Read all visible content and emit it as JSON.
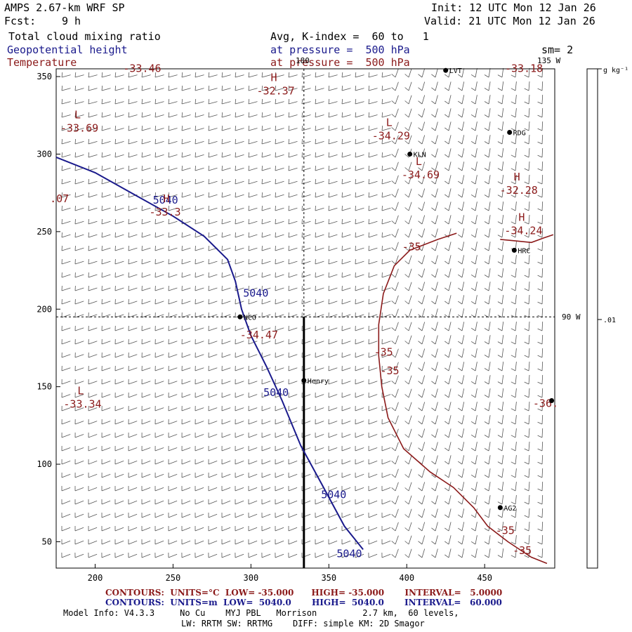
{
  "header": {
    "model": "AMPS 2.67-km WRF SP",
    "fcst_label": "Fcst:",
    "fcst_value": "9 h",
    "init": "Init: 12 UTC Mon 12 Jan 26",
    "valid": "Valid: 21 UTC Mon 12 Jan 26",
    "field1": "Total cloud mixing ratio",
    "field2": "Geopotential height",
    "field3": "Temperature",
    "avg": "Avg, K-index =  60 to   1",
    "pressure1": "at pressure =  500 hPa",
    "pressure2": "at pressure =  500 hPa",
    "sm": "sm= 2"
  },
  "colorbar": {
    "unit": "g kg⁻¹",
    "tick": ".01",
    "color": "#ffffff"
  },
  "map_labels": {
    "lon_top_180": "180",
    "lon_top_135w": "135 W",
    "lon_right_90w": "90 W"
  },
  "chart_data": {
    "type": "contour-map",
    "xlim": [
      175,
      495
    ],
    "ylim": [
      33,
      355
    ],
    "xticks": [
      "200",
      "250",
      "300",
      "350",
      "400",
      "450"
    ],
    "yticks": [
      "50",
      "100",
      "150",
      "200",
      "250",
      "300",
      "350"
    ],
    "reference_lines": {
      "lon_180_x": 334,
      "lon_90w_y": 195
    },
    "cross_section_x": 334,
    "stations": [
      {
        "name": "LVT",
        "x": 425,
        "y": 354
      },
      {
        "name": "RDG",
        "x": 466,
        "y": 314
      },
      {
        "name": "KLN",
        "x": 402,
        "y": 300
      },
      {
        "name": "HRC",
        "x": 469,
        "y": 238
      },
      {
        "name": "NCO",
        "x": 293,
        "y": 195
      },
      {
        "name": "Henry",
        "x": 334,
        "y": 154
      },
      {
        "name": "AG2",
        "x": 460,
        "y": 72
      },
      {
        "name": "",
        "x": 493,
        "y": 141
      }
    ],
    "highs_lows": [
      {
        "type": "H",
        "value": "-32.37",
        "x": 310,
        "y": 347
      },
      {
        "type": "L",
        "value": "-33.69",
        "x": 184,
        "y": 323
      },
      {
        "type": "L",
        "value": "-34.29",
        "x": 384,
        "y": 318
      },
      {
        "type": "L",
        "value": "-34.69",
        "x": 403,
        "y": 293
      },
      {
        "type": "H",
        "value": "-32.28",
        "x": 466,
        "y": 283
      },
      {
        "type": "H",
        "value": "-33.3",
        "x": 241,
        "y": 269
      },
      {
        "type": "H",
        "value": "-34.24",
        "x": 469,
        "y": 257
      },
      {
        "type": "L",
        "value": "-33.34",
        "x": 186,
        "y": 145
      }
    ],
    "edge_labels": [
      {
        "text": "-33.46",
        "x": 227,
        "y": 353
      },
      {
        "text": "-33.18",
        "x": 472,
        "y": 353
      },
      {
        "text": ".07",
        "x": 180,
        "y": 269
      },
      {
        "text": "-34.47",
        "x": 302,
        "y": 181
      },
      {
        "text": "-36.",
        "x": 490,
        "y": 137
      }
    ],
    "series": [
      {
        "name": "Geopotential height",
        "level": "5040",
        "color": "#1a1a8c",
        "labels": [
          [
            237,
            268
          ],
          [
            295,
            208
          ],
          [
            308,
            144
          ],
          [
            345,
            78
          ],
          [
            355,
            40
          ]
        ],
        "points": [
          [
            175,
            298
          ],
          [
            200,
            288
          ],
          [
            225,
            274
          ],
          [
            250,
            260
          ],
          [
            270,
            247
          ],
          [
            285,
            232
          ],
          [
            290,
            218
          ],
          [
            294,
            200
          ],
          [
            300,
            183
          ],
          [
            310,
            163
          ],
          [
            320,
            141
          ],
          [
            332,
            112
          ],
          [
            345,
            88
          ],
          [
            360,
            60
          ],
          [
            372,
            45
          ]
        ]
      },
      {
        "name": "Temperature",
        "level": "-35",
        "color": "#8b1a1a",
        "labels": [
          [
            397,
            238
          ],
          [
            379,
            170
          ],
          [
            383,
            158
          ],
          [
            457,
            55
          ],
          [
            468,
            42
          ]
        ],
        "points": [
          [
            432,
            249
          ],
          [
            420,
            245
          ],
          [
            402,
            238
          ],
          [
            392,
            228
          ],
          [
            385,
            210
          ],
          [
            382,
            190
          ],
          [
            382,
            170
          ],
          [
            384,
            150
          ],
          [
            388,
            130
          ],
          [
            398,
            110
          ],
          [
            415,
            95
          ],
          [
            430,
            85
          ],
          [
            443,
            72
          ],
          [
            452,
            60
          ],
          [
            465,
            50
          ],
          [
            480,
            40
          ],
          [
            490,
            36
          ]
        ]
      },
      {
        "name": "Temperature",
        "level": "-35",
        "color": "#8b1a1a",
        "labels": [],
        "points": [
          [
            460,
            245
          ],
          [
            470,
            244
          ],
          [
            480,
            243
          ],
          [
            488,
            246
          ],
          [
            494,
            248
          ]
        ]
      }
    ]
  },
  "footer": {
    "line1": "CONTOURS:  UNITS=°C  LOW= -35.000      HIGH= -35.000       INTERVAL=   5.0000",
    "line2": "CONTOURS:  UNITS=m  LOW=  5040.0       HIGH=  5040.0       INTERVAL=   60.000",
    "info1": "Model Info: V4.3.3     No Cu    MYJ PBL   Morrison         2.7 km,  60 levels,",
    "info2": "LW: RRTM SW: RRTMG    DIFF: simple KM: 2D Smagor"
  }
}
